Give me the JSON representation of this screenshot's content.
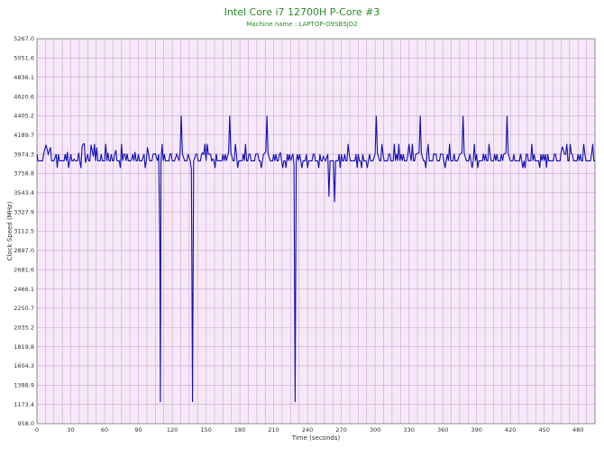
{
  "chart_data": {
    "type": "line",
    "title": "Intel Core i7 12700H P-Core #3",
    "subtitle": "Machine name : LAPTOP-O9SB5JD2",
    "xlabel": "Time (seconds)",
    "ylabel": "Clock Speed (MHz)",
    "xlim": [
      0,
      495
    ],
    "ylim": [
      958.0,
      5267.0
    ],
    "x_ticks": [
      0,
      30,
      60,
      90,
      120,
      150,
      180,
      210,
      240,
      270,
      300,
      330,
      360,
      390,
      420,
      450,
      480
    ],
    "y_ticks": [
      "958.0",
      "1173.4",
      "1388.9",
      "1604.3",
      "1819.8",
      "2035.2",
      "2250.7",
      "2466.1",
      "2681.6",
      "2897.0",
      "3112.5",
      "3327.9",
      "3543.4",
      "3758.8",
      "3974.3",
      "4189.7",
      "4405.2",
      "4620.6",
      "4836.1",
      "5051.6",
      "5267.0"
    ],
    "grid": true,
    "baseline": 3900,
    "noise_low": 3820,
    "noise_high": 4090,
    "series": [
      {
        "values": [
          [
            0,
            3974.3
          ],
          [
            3,
            3900
          ],
          [
            6,
            3980
          ],
          [
            8,
            4080
          ],
          [
            10,
            3974.3
          ],
          [
            12,
            4050
          ],
          [
            15,
            3900
          ],
          [
            17,
            3974.3
          ],
          [
            20,
            3900
          ],
          [
            24,
            3900
          ],
          [
            27,
            4000
          ],
          [
            30,
            3974.3
          ],
          [
            33,
            3920
          ],
          [
            37,
            3990
          ],
          [
            40,
            4060
          ],
          [
            43,
            3880
          ],
          [
            45,
            3974.3
          ],
          [
            48,
            4080
          ],
          [
            50,
            3950
          ],
          [
            53,
            4050
          ],
          [
            57,
            3974.3
          ],
          [
            60,
            3900
          ],
          [
            63,
            3990
          ],
          [
            66,
            3974.3
          ],
          [
            70,
            4020
          ],
          [
            73,
            3900
          ],
          [
            77,
            3974.3
          ],
          [
            80,
            3980
          ],
          [
            84,
            3920
          ],
          [
            87,
            4000
          ],
          [
            90,
            3974.3
          ],
          [
            93,
            3900
          ],
          [
            95,
            3974.3
          ],
          [
            98,
            4050
          ],
          [
            100,
            3900
          ],
          [
            103,
            3974.3
          ],
          [
            105,
            3980
          ],
          [
            107,
            3900
          ],
          [
            108,
            3974.3
          ],
          [
            109,
            2950
          ],
          [
            109.5,
            1200
          ],
          [
            110,
            3900
          ],
          [
            113,
            3974.3
          ],
          [
            116,
            3900
          ],
          [
            119,
            3980
          ],
          [
            122,
            3900
          ],
          [
            124,
            3974.3
          ],
          [
            126,
            3900
          ],
          [
            127,
            4000
          ],
          [
            128,
            4405.2
          ],
          [
            129,
            3980
          ],
          [
            131,
            3900
          ],
          [
            134,
            3974.3
          ],
          [
            136,
            3900
          ],
          [
            137,
            3800
          ],
          [
            138,
            1200
          ],
          [
            139,
            3900
          ],
          [
            141,
            3974.3
          ],
          [
            144,
            3900
          ],
          [
            147,
            3990
          ],
          [
            150,
            3900
          ],
          [
            153,
            3974.3
          ],
          [
            156,
            3920
          ],
          [
            159,
            3980
          ],
          [
            162,
            3900
          ],
          [
            165,
            3974.3
          ],
          [
            168,
            3900
          ],
          [
            170,
            4000
          ],
          [
            171,
            4405.2
          ],
          [
            172,
            3990
          ],
          [
            174,
            3900
          ],
          [
            177,
            3974.3
          ],
          [
            180,
            3900
          ],
          [
            183,
            3980
          ],
          [
            186,
            3900
          ],
          [
            189,
            3974.3
          ],
          [
            192,
            3900
          ],
          [
            195,
            3980
          ],
          [
            198,
            3900
          ],
          [
            201,
            3974.3
          ],
          [
            203,
            4000
          ],
          [
            204,
            4405.2
          ],
          [
            205,
            3980
          ],
          [
            207,
            3900
          ],
          [
            210,
            3974.3
          ],
          [
            213,
            3900
          ],
          [
            216,
            3990
          ],
          [
            219,
            3900
          ],
          [
            222,
            3974.3
          ],
          [
            225,
            3900
          ],
          [
            227,
            3980
          ],
          [
            228,
            3850
          ],
          [
            229,
            1200
          ],
          [
            230,
            3900
          ],
          [
            233,
            3974.3
          ],
          [
            236,
            3900
          ],
          [
            239,
            3974.3
          ],
          [
            242,
            3900
          ],
          [
            245,
            3974.3
          ],
          [
            248,
            3900
          ],
          [
            251,
            3974.3
          ],
          [
            254,
            3950
          ],
          [
            256,
            3900
          ],
          [
            258,
            3974.3
          ],
          [
            259,
            3500
          ],
          [
            260,
            3900
          ],
          [
            263,
            3900
          ],
          [
            264,
            3440
          ],
          [
            265,
            3900
          ],
          [
            268,
            3974.3
          ],
          [
            271,
            3900
          ],
          [
            274,
            3900
          ],
          [
            277,
            3974.3
          ],
          [
            280,
            3900
          ],
          [
            283,
            3974.3
          ],
          [
            286,
            3900
          ],
          [
            289,
            3974.3
          ],
          [
            292,
            3900
          ],
          [
            295,
            3974.3
          ],
          [
            298,
            3900
          ],
          [
            300,
            3980
          ],
          [
            301,
            4405.2
          ],
          [
            302,
            3990
          ],
          [
            304,
            3900
          ],
          [
            307,
            3974.3
          ],
          [
            310,
            3900
          ],
          [
            313,
            3974.3
          ],
          [
            316,
            3900
          ],
          [
            319,
            3980
          ],
          [
            322,
            3900
          ],
          [
            325,
            3974.3
          ],
          [
            328,
            3900
          ],
          [
            331,
            3974.3
          ],
          [
            334,
            3900
          ],
          [
            337,
            3980
          ],
          [
            339,
            3990
          ],
          [
            340,
            4405.2
          ],
          [
            341,
            3980
          ],
          [
            343,
            3900
          ],
          [
            346,
            3974.3
          ],
          [
            349,
            3900
          ],
          [
            352,
            3980
          ],
          [
            355,
            3900
          ],
          [
            358,
            3974.3
          ],
          [
            361,
            3900
          ],
          [
            364,
            3974.3
          ],
          [
            367,
            3900
          ],
          [
            370,
            3980
          ],
          [
            373,
            3900
          ],
          [
            375,
            3974.3
          ],
          [
            377,
            3990
          ],
          [
            378,
            4405.2
          ],
          [
            379,
            3980
          ],
          [
            381,
            3900
          ],
          [
            384,
            3974.3
          ],
          [
            387,
            3900
          ],
          [
            390,
            3974.3
          ],
          [
            393,
            3900
          ],
          [
            396,
            3980
          ],
          [
            399,
            3900
          ],
          [
            402,
            3974.3
          ],
          [
            405,
            3900
          ],
          [
            408,
            3974.3
          ],
          [
            411,
            3900
          ],
          [
            414,
            3974.3
          ],
          [
            416,
            3990
          ],
          [
            417,
            4405.2
          ],
          [
            418,
            3980
          ],
          [
            420,
            3900
          ],
          [
            423,
            3974.3
          ],
          [
            426,
            3900
          ],
          [
            429,
            3980
          ],
          [
            432,
            3900
          ],
          [
            435,
            3974.3
          ],
          [
            438,
            3900
          ],
          [
            441,
            3974.3
          ],
          [
            444,
            3900
          ],
          [
            447,
            3974.3
          ],
          [
            450,
            3900
          ],
          [
            453,
            3974.3
          ],
          [
            456,
            3900
          ],
          [
            459,
            3974.3
          ],
          [
            462,
            3900
          ],
          [
            465,
            4000
          ],
          [
            466,
            4060
          ],
          [
            468,
            3974.3
          ],
          [
            471,
            3900
          ],
          [
            474,
            3980
          ],
          [
            477,
            3900
          ],
          [
            480,
            3974.3
          ],
          [
            483,
            3900
          ],
          [
            486,
            3980
          ],
          [
            489,
            3900
          ],
          [
            492,
            3974.3
          ],
          [
            495,
            3900
          ]
        ]
      }
    ]
  },
  "colors": {
    "title": "#2a8a2a",
    "subtitle": "#2a8a2a",
    "plot_bg": "#f6e8f8",
    "grid": "#c9a8cf",
    "axis": "#7a7a7a",
    "line": "#1010b0",
    "tick_text": "#333333",
    "label_text": "#333333"
  }
}
